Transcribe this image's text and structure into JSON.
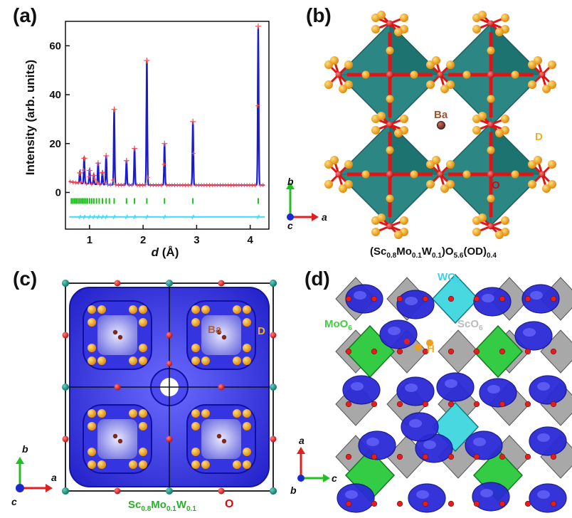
{
  "panels": {
    "a": {
      "letter": "(a)"
    },
    "b": {
      "letter": "(b)",
      "formula": {
        "p1": "(Sc",
        "s1": "0.8",
        "p2": "Mo",
        "s2": "0.1",
        "p3": "W",
        "s3": "0.1",
        "p4": ")O",
        "s4": "5.6",
        "p5": "(OD)",
        "s5": "0.4"
      },
      "labels": {
        "ba": "Ba",
        "d": "D",
        "o": "O"
      },
      "axes": {
        "b": "b",
        "a": "a",
        "c": "c"
      }
    },
    "c": {
      "letter": "(c)",
      "labels": {
        "ba": "Ba",
        "d": "D",
        "o": "O"
      },
      "formula": {
        "p1": "Sc",
        "s1": "0.8",
        "p2": "Mo",
        "s2": "0.1",
        "p3": "W",
        "s3": "0.1"
      },
      "axes": {
        "b": "b",
        "a": "a",
        "c": "c"
      }
    },
    "d": {
      "letter": "(d)",
      "labels": {
        "wo6": "WO",
        "wo6_sub": "6",
        "moo6": "MoO",
        "moo6_sub": "6",
        "sco6": "ScO",
        "sco6_sub": "6",
        "h": "H"
      },
      "axes": {
        "a": "a",
        "c": "c",
        "b": "b"
      }
    }
  },
  "chart_data": {
    "type": "line",
    "xlabel": "d (Å)",
    "ylabel": "Intensity (arb. units)",
    "xlim": [
      0.55,
      4.35
    ],
    "ylim": [
      -15,
      70
    ],
    "xticks": [
      1,
      2,
      3,
      4
    ],
    "yticks": [
      0,
      20,
      40,
      60
    ],
    "peaks": [
      {
        "x": 0.82,
        "y": 8
      },
      {
        "x": 0.9,
        "y": 14
      },
      {
        "x": 1.0,
        "y": 9
      },
      {
        "x": 1.08,
        "y": 7
      },
      {
        "x": 1.16,
        "y": 12
      },
      {
        "x": 1.24,
        "y": 8
      },
      {
        "x": 1.31,
        "y": 15
      },
      {
        "x": 1.46,
        "y": 34
      },
      {
        "x": 1.69,
        "y": 13
      },
      {
        "x": 1.84,
        "y": 18
      },
      {
        "x": 2.07,
        "y": 54
      },
      {
        "x": 2.4,
        "y": 20
      },
      {
        "x": 2.93,
        "y": 29
      },
      {
        "x": 4.15,
        "y": 68
      }
    ],
    "baseline": 3,
    "bragg_level": -3.5,
    "bragg_ticks": [
      0.66,
      0.69,
      0.72,
      0.75,
      0.78,
      0.81,
      0.84,
      0.87,
      0.9,
      0.93,
      0.96,
      1.0,
      1.04,
      1.08,
      1.13,
      1.18,
      1.24,
      1.31,
      1.37,
      1.46,
      1.69,
      1.84,
      2.07,
      2.4,
      2.93,
      4.15
    ],
    "difference_level": -10,
    "colors": {
      "calc": "#1a1ad0",
      "obs": "#ff4d4d",
      "bragg": "#1fbf1f",
      "diff": "#3fe0ff"
    }
  },
  "colors": {
    "sc_oct": "#1b7d7a",
    "mo": "#3cc43c",
    "w": "#5ad9e0",
    "sc_gray": "#9b9b9b",
    "density": "#2a2ad6",
    "o": "#dd1b1b",
    "d": "#f0a020",
    "ba": "#8b3a2b",
    "sc_atom": "#1f9a8a"
  }
}
